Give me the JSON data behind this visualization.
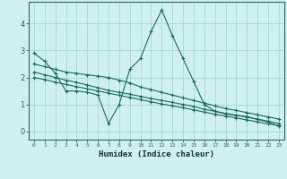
{
  "xlabel": "Humidex (Indice chaleur)",
  "background_color": "#cff0ee",
  "grid_color": "#a8d8cc",
  "line_color": "#1a6b5a",
  "xlim": [
    -0.5,
    23.5
  ],
  "ylim": [
    -0.3,
    4.8
  ],
  "xticks": [
    0,
    1,
    2,
    3,
    4,
    5,
    6,
    7,
    8,
    9,
    10,
    11,
    12,
    13,
    14,
    15,
    16,
    17,
    18,
    19,
    20,
    21,
    22,
    23
  ],
  "yticks": [
    0,
    1,
    2,
    3,
    4
  ],
  "series": [
    {
      "x": [
        0,
        1,
        2,
        3,
        4,
        5,
        6,
        7,
        8,
        9,
        10,
        11,
        12,
        13,
        14,
        15,
        16,
        17,
        18,
        19,
        20,
        21,
        22,
        23
      ],
      "y": [
        2.9,
        2.6,
        2.15,
        1.5,
        1.5,
        1.45,
        1.35,
        0.3,
        1.0,
        2.3,
        2.7,
        3.7,
        4.5,
        3.55,
        2.7,
        1.85,
        1.0,
        0.75,
        0.65,
        0.6,
        0.55,
        0.45,
        0.35,
        0.2
      ]
    },
    {
      "x": [
        0,
        1,
        2,
        3,
        4,
        5,
        6,
        7,
        8,
        9,
        10,
        11,
        12,
        13,
        14,
        15,
        16,
        17,
        18,
        19,
        20,
        21,
        22,
        23
      ],
      "y": [
        2.5,
        2.4,
        2.3,
        2.2,
        2.15,
        2.1,
        2.05,
        2.0,
        1.9,
        1.8,
        1.65,
        1.55,
        1.45,
        1.35,
        1.25,
        1.15,
        1.05,
        0.95,
        0.85,
        0.78,
        0.7,
        0.62,
        0.54,
        0.46
      ]
    },
    {
      "x": [
        0,
        1,
        2,
        3,
        4,
        5,
        6,
        7,
        8,
        9,
        10,
        11,
        12,
        13,
        14,
        15,
        16,
        17,
        18,
        19,
        20,
        21,
        22,
        23
      ],
      "y": [
        2.2,
        2.1,
        2.0,
        1.9,
        1.82,
        1.72,
        1.62,
        1.52,
        1.45,
        1.38,
        1.3,
        1.22,
        1.15,
        1.08,
        1.0,
        0.93,
        0.82,
        0.75,
        0.67,
        0.6,
        0.53,
        0.46,
        0.38,
        0.3
      ]
    },
    {
      "x": [
        0,
        1,
        2,
        3,
        4,
        5,
        6,
        7,
        8,
        9,
        10,
        11,
        12,
        13,
        14,
        15,
        16,
        17,
        18,
        19,
        20,
        21,
        22,
        23
      ],
      "y": [
        2.0,
        1.92,
        1.83,
        1.74,
        1.66,
        1.58,
        1.5,
        1.42,
        1.34,
        1.26,
        1.18,
        1.1,
        1.02,
        0.95,
        0.88,
        0.8,
        0.72,
        0.64,
        0.57,
        0.5,
        0.43,
        0.36,
        0.28,
        0.22
      ]
    }
  ]
}
